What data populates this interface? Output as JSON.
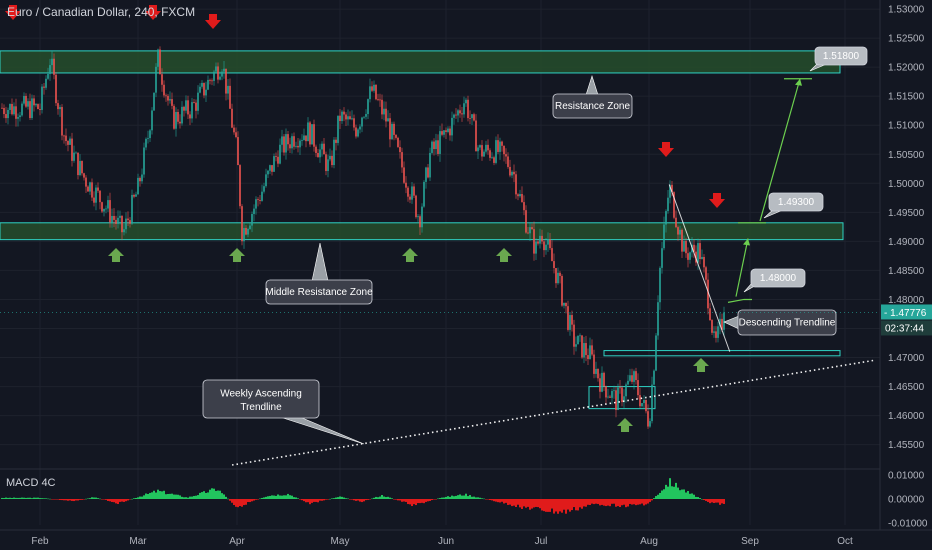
{
  "header": {
    "title": "Euro / Canadian Dollar, 240, FXCM"
  },
  "price_tag": {
    "value": "1.47776",
    "countdown": "02:37:44"
  },
  "macd": {
    "label": "MACD 4C",
    "ticks": [
      "0.01000",
      "0.00000",
      "-0.01000"
    ]
  },
  "colors": {
    "background": "#131722",
    "up": "#26a69a",
    "down": "#ef5350",
    "zone_fill": "#264d2c",
    "zone_border": "#2fd3c4",
    "arrow_green": "#6aa84f",
    "arrow_red": "#e01b1b",
    "callout_bg": "#9aa0a6",
    "tag_bg": "#26a69a"
  },
  "annotations": {
    "resistance_zone": "Resistance Zone",
    "middle_resistance_zone": "Middle Resistance Zone",
    "weekly_trendline": "Weekly Ascending\nTrendline",
    "descending_trendline": "Descending Trendline",
    "target_1": "1.48000",
    "target_2": "1.49300",
    "target_3": "1.51800"
  },
  "chart_data": {
    "type": "candlestick",
    "title": "Euro / Canadian Dollar, 240, FXCM",
    "x_ticks": [
      "Feb",
      "Mar",
      "Apr",
      "May",
      "Jun",
      "Jul",
      "Aug",
      "Sep",
      "Oct"
    ],
    "y_ticks": [
      "1.53000",
      "1.52500",
      "1.52000",
      "1.51500",
      "1.51000",
      "1.50500",
      "1.50000",
      "1.49500",
      "1.49000",
      "1.48500",
      "1.48000",
      "1.47500",
      "1.47000",
      "1.46500",
      "1.46000",
      "1.45500"
    ],
    "ylim": [
      1.4515,
      1.5307
    ],
    "last_price": 1.47776,
    "price_path": [
      {
        "t": 0.0,
        "p": 1.513
      },
      {
        "t": 0.1,
        "p": 1.5215
      },
      {
        "t": 0.25,
        "p": 1.508
      },
      {
        "t": 0.45,
        "p": 1.501
      },
      {
        "t": 0.65,
        "p": 1.4965
      },
      {
        "t": 0.85,
        "p": 1.4915
      },
      {
        "t": 1.0,
        "p": 1.499
      },
      {
        "t": 1.1,
        "p": 1.508
      },
      {
        "t": 1.2,
        "p": 1.5215
      },
      {
        "t": 1.35,
        "p": 1.511
      },
      {
        "t": 1.55,
        "p": 1.513
      },
      {
        "t": 1.75,
        "p": 1.5185
      },
      {
        "t": 1.85,
        "p": 1.521
      },
      {
        "t": 2.0,
        "p": 1.505
      },
      {
        "t": 2.05,
        "p": 1.4915
      },
      {
        "t": 2.25,
        "p": 1.499
      },
      {
        "t": 2.4,
        "p": 1.5055
      },
      {
        "t": 2.55,
        "p": 1.508
      },
      {
        "t": 2.7,
        "p": 1.509
      },
      {
        "t": 2.9,
        "p": 1.5025
      },
      {
        "t": 3.0,
        "p": 1.5115
      },
      {
        "t": 3.15,
        "p": 1.5095
      },
      {
        "t": 3.3,
        "p": 1.516
      },
      {
        "t": 3.45,
        "p": 1.5105
      },
      {
        "t": 3.6,
        "p": 1.502
      },
      {
        "t": 3.75,
        "p": 1.494
      },
      {
        "t": 3.85,
        "p": 1.505
      },
      {
        "t": 4.0,
        "p": 1.5085
      },
      {
        "t": 4.2,
        "p": 1.5145
      },
      {
        "t": 4.35,
        "p": 1.5055
      },
      {
        "t": 4.55,
        "p": 1.5055
      },
      {
        "t": 4.7,
        "p": 1.5025
      },
      {
        "t": 4.85,
        "p": 1.493
      },
      {
        "t": 4.95,
        "p": 1.4885
      },
      {
        "t": 5.0,
        "p": 1.492
      },
      {
        "t": 5.15,
        "p": 1.484
      },
      {
        "t": 5.3,
        "p": 1.473
      },
      {
        "t": 5.45,
        "p": 1.4705
      },
      {
        "t": 5.55,
        "p": 1.466
      },
      {
        "t": 5.7,
        "p": 1.4625
      },
      {
        "t": 5.85,
        "p": 1.4665
      },
      {
        "t": 6.0,
        "p": 1.459
      },
      {
        "t": 6.05,
        "p": 1.4695
      },
      {
        "t": 6.1,
        "p": 1.484
      },
      {
        "t": 6.2,
        "p": 1.4995
      },
      {
        "t": 6.35,
        "p": 1.488
      },
      {
        "t": 6.5,
        "p": 1.4885
      },
      {
        "t": 6.6,
        "p": 1.479
      },
      {
        "t": 6.65,
        "p": 1.4715
      },
      {
        "t": 6.75,
        "p": 1.4778
      }
    ],
    "zones": [
      {
        "name": "Resistance Zone",
        "low": 1.519,
        "high": 1.5228
      },
      {
        "name": "Middle Resistance Zone",
        "low": 1.4903,
        "high": 1.4932
      },
      {
        "name": "Support Zone",
        "low": 1.4703,
        "high": 1.4712
      }
    ],
    "trendlines": [
      {
        "name": "Weekly Ascending Trendline",
        "style": "dotted",
        "from": {
          "t": 1.95,
          "p": 1.4515
        },
        "to": {
          "t": 8.3,
          "p": 1.4695
        }
      },
      {
        "name": "Descending Trendline",
        "style": "solid",
        "from": {
          "t": 6.2,
          "p": 1.4998
        },
        "to": {
          "t": 6.8,
          "p": 1.471
        }
      }
    ],
    "targets": [
      1.48,
      1.493,
      1.518
    ],
    "macd_ylim": [
      -0.012,
      0.012
    ],
    "macd_profile": [
      {
        "t": 0.0,
        "v": 0.0005
      },
      {
        "t": 0.35,
        "v": -0.001
      },
      {
        "t": 0.55,
        "v": 0.0008
      },
      {
        "t": 0.8,
        "v": -0.0018
      },
      {
        "t": 1.2,
        "v": 0.0035
      },
      {
        "t": 1.5,
        "v": 0.0006
      },
      {
        "t": 1.8,
        "v": 0.0045
      },
      {
        "t": 2.0,
        "v": -0.0035
      },
      {
        "t": 2.3,
        "v": 0.0015
      },
      {
        "t": 2.5,
        "v": 0.0022
      },
      {
        "t": 2.7,
        "v": -0.002
      },
      {
        "t": 3.0,
        "v": 0.001
      },
      {
        "t": 3.2,
        "v": -0.0012
      },
      {
        "t": 3.4,
        "v": 0.0016
      },
      {
        "t": 3.7,
        "v": -0.0028
      },
      {
        "t": 3.95,
        "v": 0.0006
      },
      {
        "t": 4.2,
        "v": 0.002
      },
      {
        "t": 4.5,
        "v": -0.0008
      },
      {
        "t": 4.8,
        "v": -0.0035
      },
      {
        "t": 5.2,
        "v": -0.006
      },
      {
        "t": 5.5,
        "v": -0.0022
      },
      {
        "t": 5.8,
        "v": -0.003
      },
      {
        "t": 6.0,
        "v": -0.002
      },
      {
        "t": 6.2,
        "v": 0.0075
      },
      {
        "t": 6.4,
        "v": 0.0025
      },
      {
        "t": 6.6,
        "v": -0.0015
      },
      {
        "t": 6.75,
        "v": -0.0025
      }
    ]
  }
}
